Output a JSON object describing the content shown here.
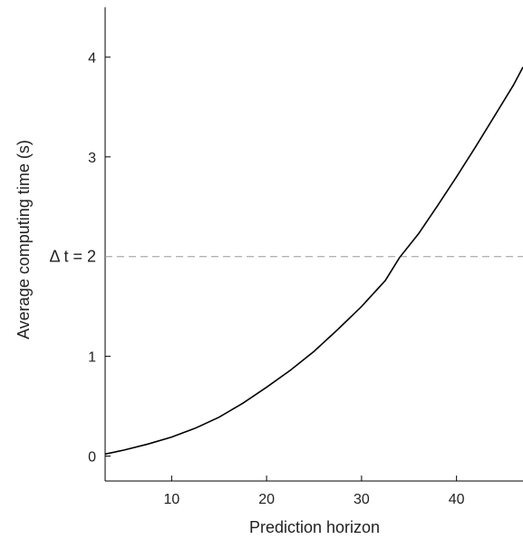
{
  "chart_data": {
    "type": "line",
    "title": "",
    "xlabel": "Prediction horizon",
    "ylabel": "Average computing time (s)",
    "xlim": [
      3,
      47
    ],
    "ylim": [
      -0.25,
      4.5
    ],
    "xticks": [
      10,
      20,
      30,
      40
    ],
    "yticks": [
      0,
      1,
      2,
      3,
      4
    ],
    "grid": false,
    "series": [
      {
        "x": [
          3,
          5,
          7.5,
          10,
          12.5,
          15,
          17.5,
          20,
          22.5,
          25,
          27.5,
          30,
          32.5,
          34,
          36,
          38,
          40,
          42,
          44,
          46,
          47
        ],
        "y": [
          0.02,
          0.06,
          0.12,
          0.19,
          0.28,
          0.39,
          0.53,
          0.69,
          0.86,
          1.05,
          1.27,
          1.5,
          1.76,
          1.99,
          2.23,
          2.51,
          2.8,
          3.1,
          3.41,
          3.72,
          3.9
        ],
        "color": "#000000"
      }
    ],
    "annotations": [
      {
        "text": "Δ t = 2",
        "y": 2,
        "style": "dashed-horizontal-line",
        "color": "#999999"
      }
    ]
  }
}
